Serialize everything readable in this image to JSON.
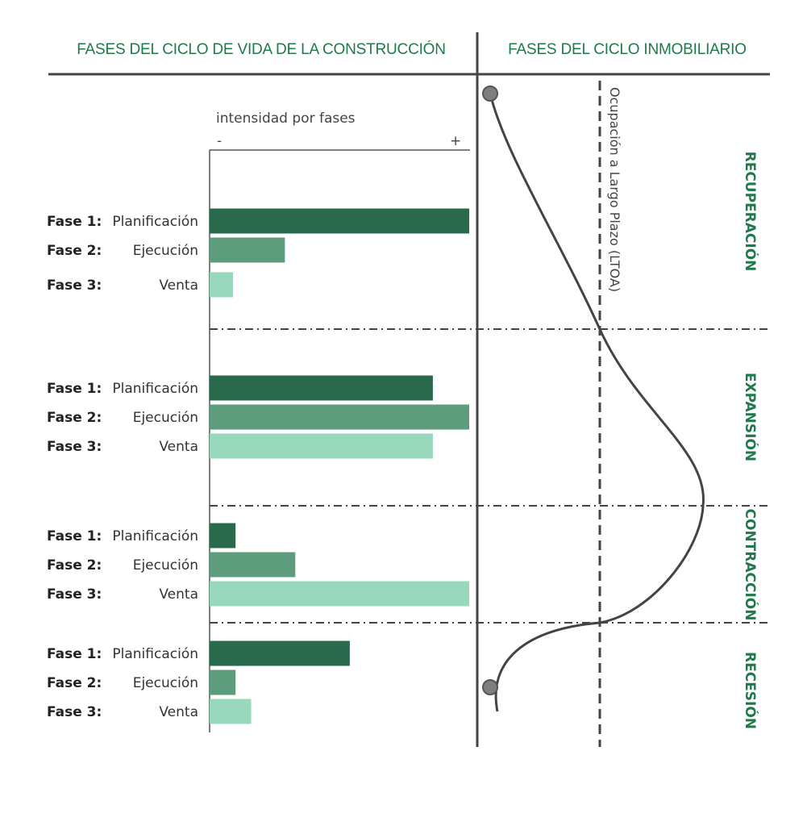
{
  "header": {
    "left_title": "FASES DEL CICLO DE VIDA DE LA CONSTRUCCIÓN",
    "right_title": "FASES DEL CICLO INMOBILIARIO"
  },
  "axis": {
    "title": "intensidad  por fases",
    "min_label": "-",
    "max_label": "+"
  },
  "ltoa_label": "Ocupación a Largo Plazo (LTOA)",
  "colors": {
    "fase1": "#2a6a4c",
    "fase2": "#5e9c7e",
    "fase3": "#98d8bc",
    "accent": "#1e7a48",
    "line": "#444444"
  },
  "chart_data": {
    "type": "bar",
    "title": "intensidad  por fases",
    "orientation": "horizontal",
    "xlim": [
      0,
      100
    ],
    "xlabel": "intensidad  por fases",
    "stages": [
      {
        "name": "RECUPERACIÓN",
        "bars": [
          {
            "fase": "Fase 1:",
            "label": "Planificación",
            "value": 100
          },
          {
            "fase": "Fase 2:",
            "label": "Ejecución",
            "value": 29
          },
          {
            "fase": "Fase 3:",
            "label": "Venta",
            "value": 9
          }
        ]
      },
      {
        "name": "EXPANSIÓN",
        "bars": [
          {
            "fase": "Fase 1:",
            "label": "Planificación",
            "value": 86
          },
          {
            "fase": "Fase 2:",
            "label": "Ejecución",
            "value": 100
          },
          {
            "fase": "Fase 3:",
            "label": "Venta",
            "value": 86
          }
        ]
      },
      {
        "name": "CONTRACCIÓN",
        "bars": [
          {
            "fase": "Fase 1:",
            "label": "Planificación",
            "value": 10
          },
          {
            "fase": "Fase 2:",
            "label": "Ejecución",
            "value": 33
          },
          {
            "fase": "Fase 3:",
            "label": "Venta",
            "value": 100
          }
        ]
      },
      {
        "name": "RECESIÓN",
        "bars": [
          {
            "fase": "Fase 1:",
            "label": "Planificación",
            "value": 54
          },
          {
            "fase": "Fase 2:",
            "label": "Ejecución",
            "value": 10
          },
          {
            "fase": "Fase 3:",
            "label": "Venta",
            "value": 16
          }
        ]
      }
    ]
  }
}
